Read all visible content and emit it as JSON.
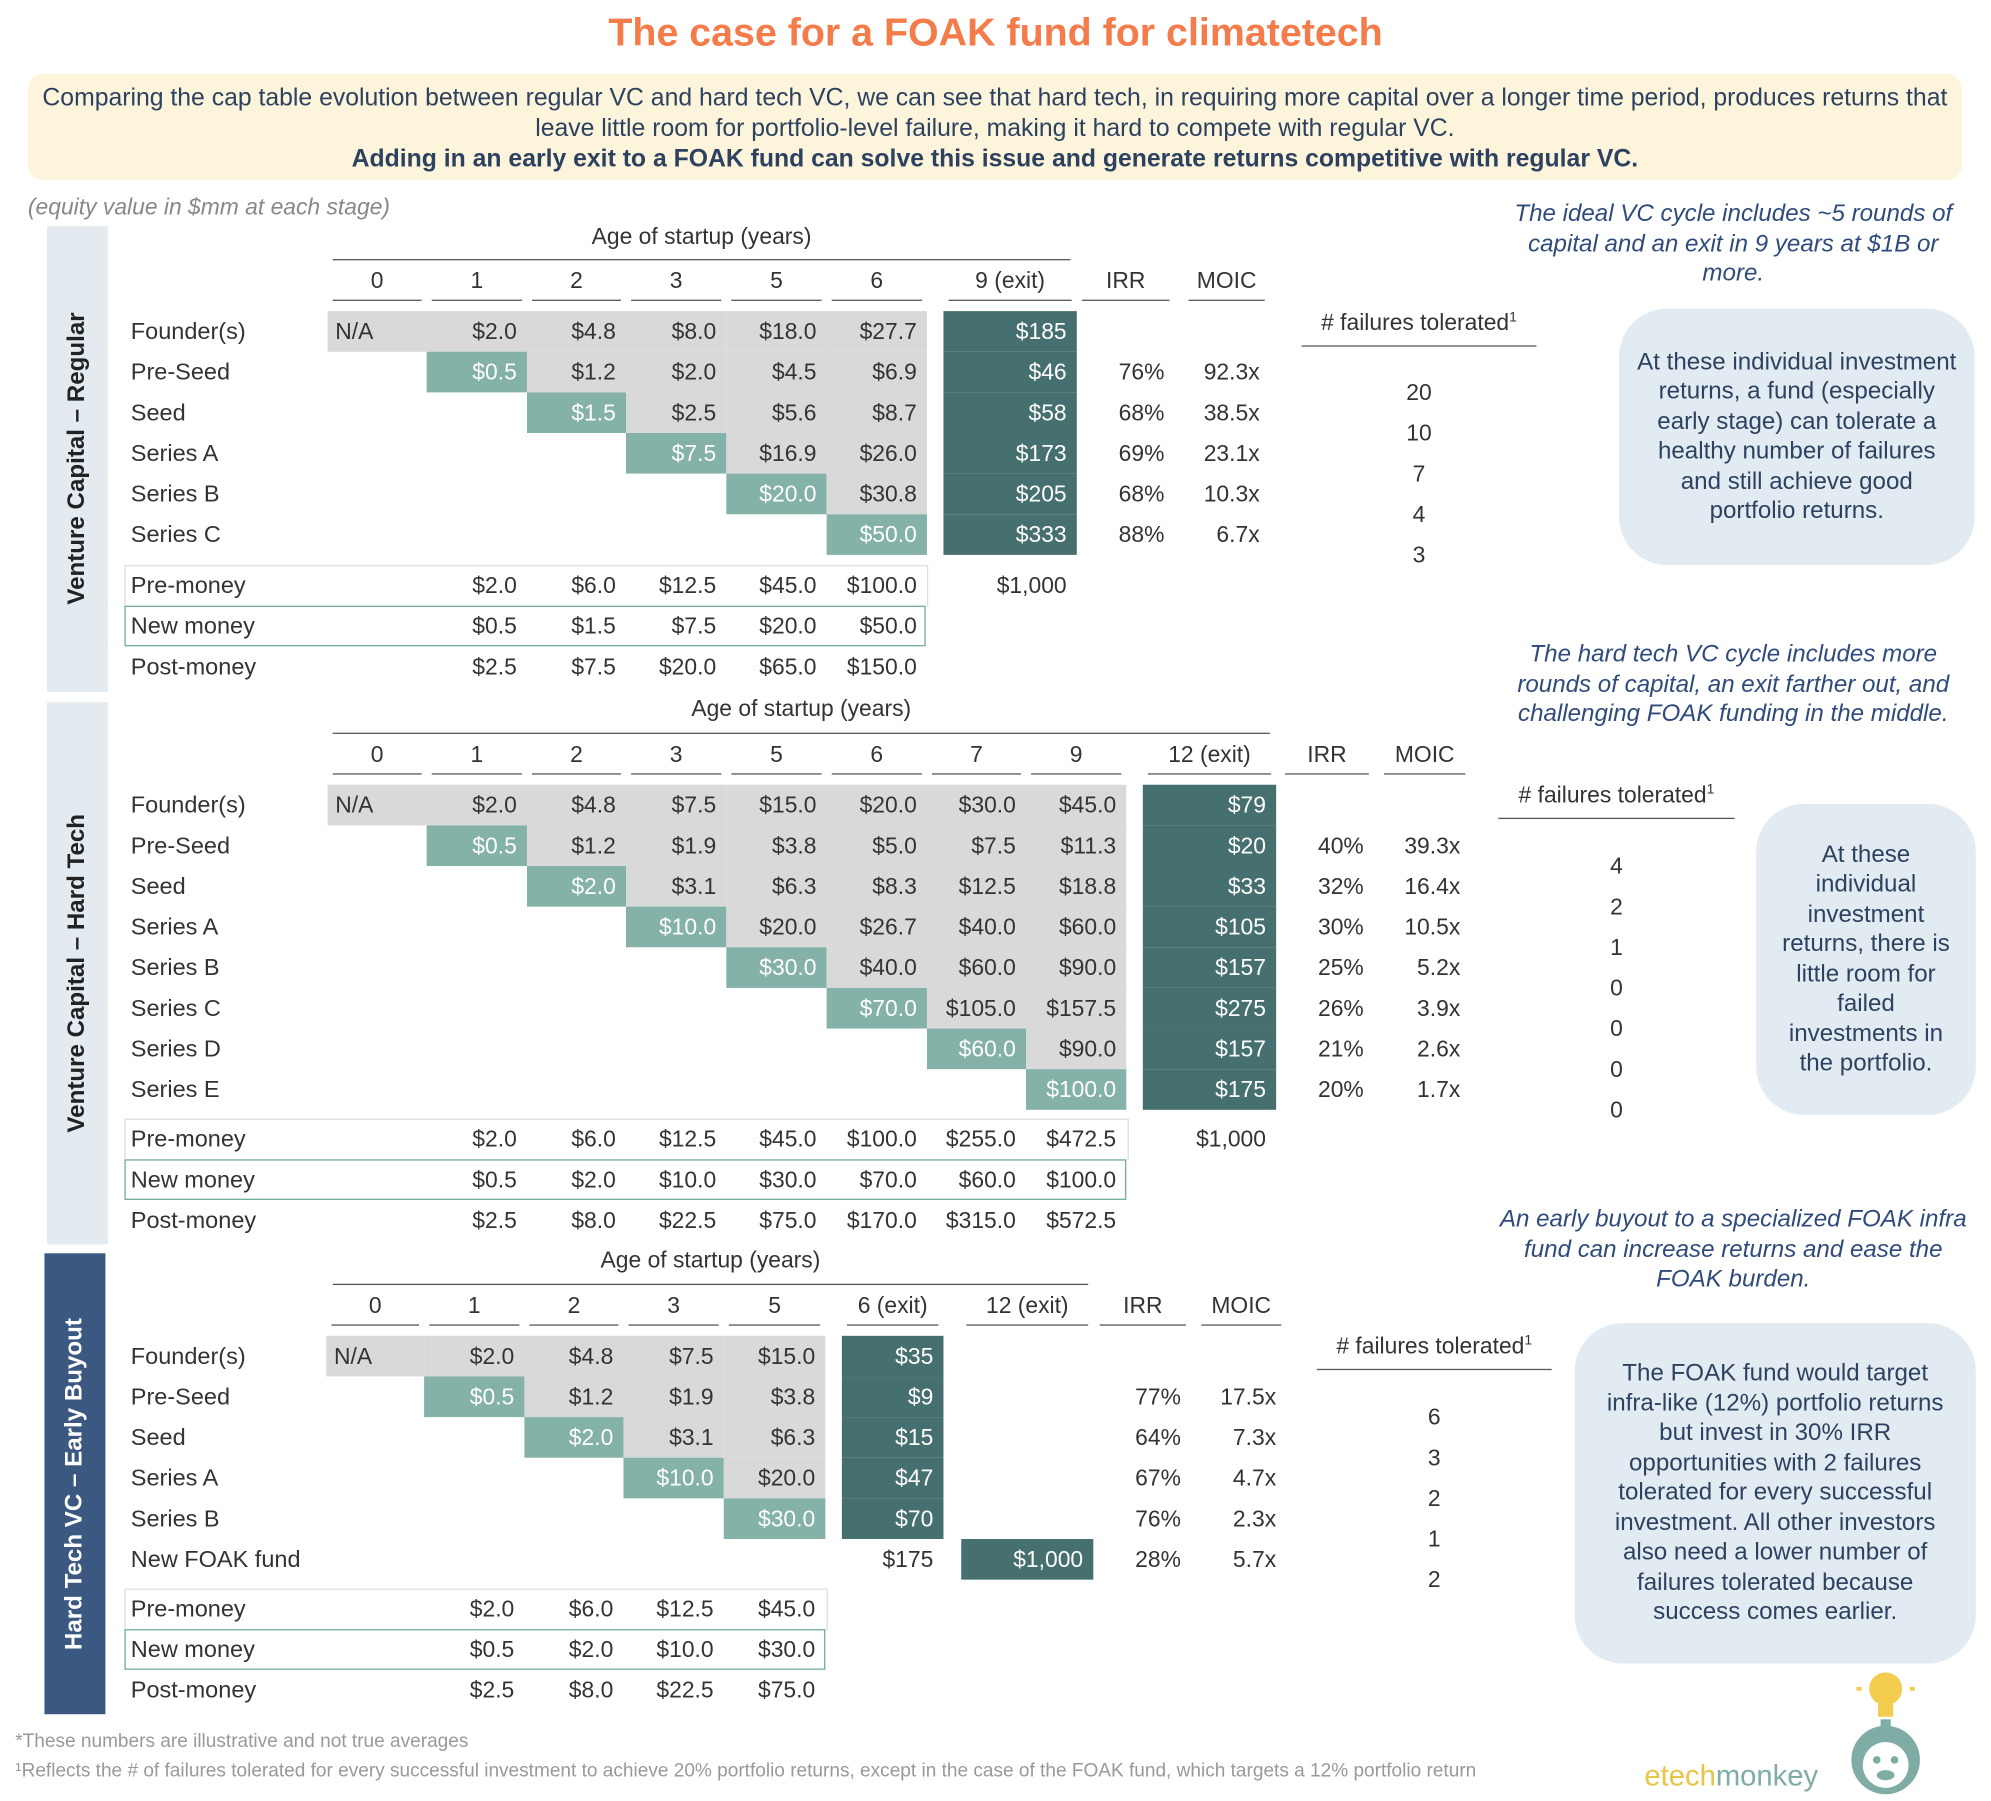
{
  "title": "The case for a FOAK fund for climatetech",
  "intro": {
    "text": "Comparing the cap table evolution between regular VC and hard tech VC, we can see that hard tech, in requiring more capital over a longer time period, produces returns that leave little room for portfolio-level failure, making it hard to compete with regular VC.",
    "bold": "Adding in an early exit to a FOAK fund can solve this issue and generate returns competitive with regular VC."
  },
  "units_note": "(equity value in $mm at each stage)",
  "colors": {
    "title": "#f47c4a",
    "existing_value": "#d9d9d9",
    "new_investment": "#84b1a8",
    "exit_value": "#466f6f",
    "callout_bg": "#e2ebf2",
    "intro_bg": "#fdf5db"
  },
  "sections": [
    {
      "side_label": "Venture Capital – Regular",
      "axis_title": "Age of startup (years)",
      "columns": [
        "0",
        "1",
        "2",
        "3",
        "5",
        "6",
        "9 (exit)",
        "IRR",
        "MOIC"
      ],
      "exit_columns": [
        6
      ],
      "rows": [
        {
          "label": "Founder(s)",
          "cells": [
            "N/A",
            "$2.0",
            "$4.8",
            "$8.0",
            "$18.0",
            "$27.7",
            "$185",
            null,
            null
          ],
          "failures": null
        },
        {
          "label": "Pre-Seed",
          "cells": [
            null,
            "$0.5",
            "$1.2",
            "$2.0",
            "$4.5",
            "$6.9",
            "$46",
            "76%",
            "92.3x"
          ],
          "failures": "20"
        },
        {
          "label": "Seed",
          "cells": [
            null,
            null,
            "$1.5",
            "$2.5",
            "$5.6",
            "$8.7",
            "$58",
            "68%",
            "38.5x"
          ],
          "failures": "10"
        },
        {
          "label": "Series A",
          "cells": [
            null,
            null,
            null,
            "$7.5",
            "$16.9",
            "$26.0",
            "$173",
            "69%",
            "23.1x"
          ],
          "failures": "7"
        },
        {
          "label": "Series B",
          "cells": [
            null,
            null,
            null,
            null,
            "$20.0",
            "$30.8",
            "$205",
            "68%",
            "10.3x"
          ],
          "failures": "4"
        },
        {
          "label": "Series C",
          "cells": [
            null,
            null,
            null,
            null,
            null,
            "$50.0",
            "$333",
            "88%",
            "6.7x"
          ],
          "failures": "3"
        }
      ],
      "totals": [
        {
          "label": "Pre-money",
          "cells": [
            null,
            "$2.0",
            "$6.0",
            "$12.5",
            "$45.0",
            "$100.0",
            "$1,000",
            null,
            null
          ]
        },
        {
          "label": "New money",
          "cells": [
            null,
            "$0.5",
            "$1.5",
            "$7.5",
            "$20.0",
            "$50.0",
            null,
            null,
            null
          ]
        },
        {
          "label": "Post-money",
          "cells": [
            null,
            "$2.5",
            "$7.5",
            "$20.0",
            "$65.0",
            "$150.0",
            null,
            null,
            null
          ]
        }
      ],
      "failures_header": "# failures tolerated",
      "failures_sup": "1",
      "note": "The ideal VC cycle includes ~5 rounds of capital  and an exit in 9 years at $1B or more.",
      "callout": "At these individual investment returns, a fund (especially early stage) can tolerate a healthy number of failures and still achieve good portfolio returns."
    },
    {
      "side_label": "Venture Capital – Hard Tech",
      "axis_title": "Age of startup (years)",
      "columns": [
        "0",
        "1",
        "2",
        "3",
        "5",
        "6",
        "7",
        "9",
        "12 (exit)",
        "IRR",
        "MOIC"
      ],
      "exit_columns": [
        8
      ],
      "rows": [
        {
          "label": "Founder(s)",
          "cells": [
            "N/A",
            "$2.0",
            "$4.8",
            "$7.5",
            "$15.0",
            "$20.0",
            "$30.0",
            "$45.0",
            "$79",
            null,
            null
          ],
          "failures": null
        },
        {
          "label": "Pre-Seed",
          "cells": [
            null,
            "$0.5",
            "$1.2",
            "$1.9",
            "$3.8",
            "$5.0",
            "$7.5",
            "$11.3",
            "$20",
            "40%",
            "39.3x"
          ],
          "failures": "4"
        },
        {
          "label": "Seed",
          "cells": [
            null,
            null,
            "$2.0",
            "$3.1",
            "$6.3",
            "$8.3",
            "$12.5",
            "$18.8",
            "$33",
            "32%",
            "16.4x"
          ],
          "failures": "2"
        },
        {
          "label": "Series A",
          "cells": [
            null,
            null,
            null,
            "$10.0",
            "$20.0",
            "$26.7",
            "$40.0",
            "$60.0",
            "$105",
            "30%",
            "10.5x"
          ],
          "failures": "1"
        },
        {
          "label": "Series B",
          "cells": [
            null,
            null,
            null,
            null,
            "$30.0",
            "$40.0",
            "$60.0",
            "$90.0",
            "$157",
            "25%",
            "5.2x"
          ],
          "failures": "0"
        },
        {
          "label": "Series C",
          "cells": [
            null,
            null,
            null,
            null,
            null,
            "$70.0",
            "$105.0",
            "$157.5",
            "$275",
            "26%",
            "3.9x"
          ],
          "failures": "0"
        },
        {
          "label": "Series D",
          "cells": [
            null,
            null,
            null,
            null,
            null,
            null,
            "$60.0",
            "$90.0",
            "$157",
            "21%",
            "2.6x"
          ],
          "failures": "0"
        },
        {
          "label": "Series E",
          "cells": [
            null,
            null,
            null,
            null,
            null,
            null,
            null,
            "$100.0",
            "$175",
            "20%",
            "1.7x"
          ],
          "failures": "0"
        }
      ],
      "totals": [
        {
          "label": "Pre-money",
          "cells": [
            null,
            "$2.0",
            "$6.0",
            "$12.5",
            "$45.0",
            "$100.0",
            "$255.0",
            "$472.5",
            "$1,000",
            null,
            null
          ]
        },
        {
          "label": "New money",
          "cells": [
            null,
            "$0.5",
            "$2.0",
            "$10.0",
            "$30.0",
            "$70.0",
            "$60.0",
            "$100.0",
            null,
            null,
            null
          ]
        },
        {
          "label": "Post-money",
          "cells": [
            null,
            "$2.5",
            "$8.0",
            "$22.5",
            "$75.0",
            "$170.0",
            "$315.0",
            "$572.5",
            null,
            null,
            null
          ]
        }
      ],
      "failures_header": "# failures tolerated",
      "failures_sup": "1",
      "note": "The hard tech VC cycle includes more rounds of capital, an exit farther out, and challenging FOAK funding in the middle.",
      "callout": "At these individual investment returns, there is little room for failed investments in the portfolio."
    },
    {
      "side_label": "Hard Tech VC – Early Buyout",
      "axis_title": "Age of startup (years)",
      "columns": [
        "0",
        "1",
        "2",
        "3",
        "5",
        "6 (exit)",
        "12 (exit)",
        "IRR",
        "MOIC"
      ],
      "exit_columns": [
        5,
        6
      ],
      "rows": [
        {
          "label": "Founder(s)",
          "cells": [
            "N/A",
            "$2.0",
            "$4.8",
            "$7.5",
            "$15.0",
            "$35",
            null,
            null,
            null
          ],
          "failures": null
        },
        {
          "label": "Pre-Seed",
          "cells": [
            null,
            "$0.5",
            "$1.2",
            "$1.9",
            "$3.8",
            "$9",
            null,
            "77%",
            "17.5x"
          ],
          "failures": "6"
        },
        {
          "label": "Seed",
          "cells": [
            null,
            null,
            "$2.0",
            "$3.1",
            "$6.3",
            "$15",
            null,
            "64%",
            "7.3x"
          ],
          "failures": "3"
        },
        {
          "label": "Series A",
          "cells": [
            null,
            null,
            null,
            "$10.0",
            "$20.0",
            "$47",
            null,
            "67%",
            "4.7x"
          ],
          "failures": "2"
        },
        {
          "label": "Series B",
          "cells": [
            null,
            null,
            null,
            null,
            "$30.0",
            "$70",
            null,
            "76%",
            "2.3x"
          ],
          "failures": "1"
        },
        {
          "label": "New FOAK fund",
          "cells": [
            null,
            null,
            null,
            null,
            null,
            "$175",
            "$1,000",
            "28%",
            "5.7x"
          ],
          "failures": "2"
        }
      ],
      "totals": [
        {
          "label": "Pre-money",
          "cells": [
            null,
            "$2.0",
            "$6.0",
            "$12.5",
            "$45.0",
            null,
            null,
            null,
            null
          ]
        },
        {
          "label": "New money",
          "cells": [
            null,
            "$0.5",
            "$2.0",
            "$10.0",
            "$30.0",
            null,
            null,
            null,
            null
          ]
        },
        {
          "label": "Post-money",
          "cells": [
            null,
            "$2.5",
            "$8.0",
            "$22.5",
            "$75.0",
            null,
            null,
            null,
            null
          ]
        }
      ],
      "failures_header": "# failures tolerated",
      "failures_sup": "1",
      "note": "An early buyout to a specialized FOAK infra fund can increase returns and ease the FOAK burden.",
      "callout": "The FOAK fund would target infra-like (12%) portfolio returns but invest in 30% IRR opportunities with 2 failures tolerated for every successful investment. All other investors also need a lower number of failures tolerated because success comes earlier."
    }
  ],
  "footnotes": [
    "*These numbers are illustrative and not true averages",
    "¹Reflects the # of failures tolerated for every successful investment to achieve 20% portfolio returns, except in the case of the FOAK fund, which targets a 12% portfolio return"
  ],
  "logo": {
    "part1": "etech",
    "part2": "monkey",
    "colors": [
      "#e8c547",
      "#7fada6"
    ],
    "icon": "monkey-lightbulb-icon"
  }
}
